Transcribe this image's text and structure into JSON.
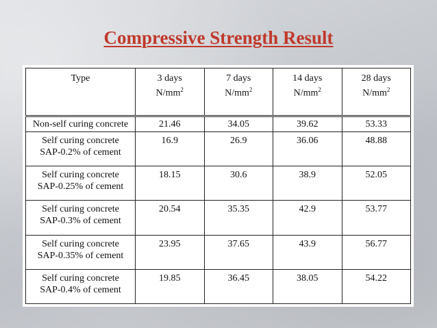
{
  "slide": {
    "title": "Compressive Strength Result"
  },
  "table": {
    "headers": [
      {
        "line1": "Type",
        "line2": "",
        "sup": ""
      },
      {
        "line1": "3 days",
        "line2": "N/mm",
        "sup": "2"
      },
      {
        "line1": "7 days",
        "line2": "N/mm",
        "sup": "2"
      },
      {
        "line1": "14 days",
        "line2": "N/mm",
        "sup": "2"
      },
      {
        "line1": "28 days",
        "line2": "N/mm",
        "sup": "2"
      }
    ],
    "rows": [
      {
        "type_line1": "Non-self curing concrete",
        "type_line2": "",
        "values": [
          "21.46",
          "34.05",
          "39.62",
          "53.33"
        ]
      },
      {
        "type_line1": "Self curing concrete",
        "type_line2": "SAP-0.2% of cement",
        "values": [
          "16.9",
          "26.9",
          "36.06",
          "48.88"
        ]
      },
      {
        "type_line1": "Self curing concrete",
        "type_line2": "SAP-0.25% of cement",
        "values": [
          "18.15",
          "30.6",
          "38.9",
          "52.05"
        ]
      },
      {
        "type_line1": "Self curing concrete",
        "type_line2": "SAP-0.3% of cement",
        "values": [
          "20.54",
          "35.35",
          "42.9",
          "53.77"
        ]
      },
      {
        "type_line1": "Self curing concrete",
        "type_line2": "SAP-0.35% of cement",
        "values": [
          "23.95",
          "37.65",
          "43.9",
          "56.77"
        ]
      },
      {
        "type_line1": "Self curing concrete",
        "type_line2": "SAP-0.4% of cement",
        "values": [
          "19.85",
          "36.45",
          "38.05",
          "54.22"
        ]
      }
    ]
  },
  "colors": {
    "title": "#c0392b"
  }
}
